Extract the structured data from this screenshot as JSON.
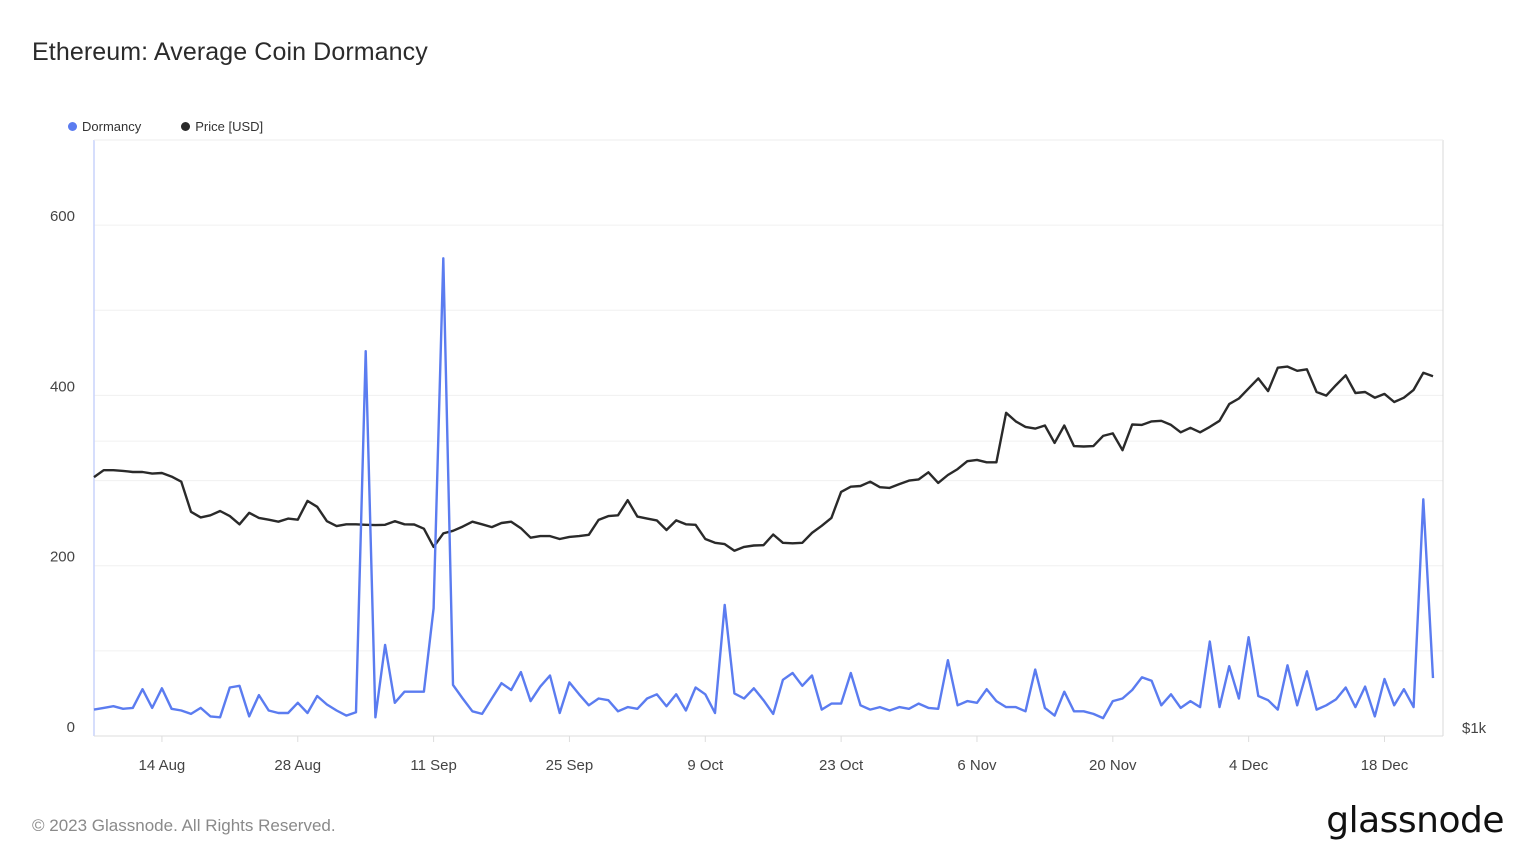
{
  "title": "Ethereum: Average Coin Dormancy",
  "footer": "© 2023 Glassnode. All Rights Reserved.",
  "logo": "glassnode",
  "chart_data": {
    "type": "line",
    "title": "Ethereum: Average Coin Dormancy",
    "start_date": "2023-08-07",
    "frequency": "daily",
    "legend": [
      {
        "name": "Dormancy",
        "color": "#5b7cf0"
      },
      {
        "name": "Price [USD]",
        "color": "#2a2a2a"
      }
    ],
    "legend_placement": "top-left",
    "x_ticks": [
      {
        "label": "14 Aug",
        "index": 7
      },
      {
        "label": "28 Aug",
        "index": 21
      },
      {
        "label": "11 Sep",
        "index": 35
      },
      {
        "label": "25 Sep",
        "index": 49
      },
      {
        "label": "9 Oct",
        "index": 63
      },
      {
        "label": "23 Oct",
        "index": 77
      },
      {
        "label": "6 Nov",
        "index": 91
      },
      {
        "label": "20 Nov",
        "index": 105
      },
      {
        "label": "4 Dec",
        "index": 119
      },
      {
        "label": "18 Dec",
        "index": 133
      }
    ],
    "y_left": {
      "label": "Dormancy",
      "range": [
        0,
        700
      ],
      "ticks": [
        "0",
        "200",
        "400",
        "600"
      ],
      "grid_step": 100
    },
    "y_right": {
      "label": "Price [USD]",
      "scale": "log",
      "range": [
        1000,
        4060
      ],
      "ticks": [
        "$1k"
      ],
      "grid": [
        2000
      ]
    },
    "grid": true,
    "series": [
      {
        "name": "Dormancy",
        "axis": "left",
        "values": [
          31,
          33,
          35,
          32,
          33,
          55,
          33,
          56,
          32,
          30,
          26,
          33,
          23,
          22,
          57,
          59,
          23,
          48,
          30,
          27,
          27,
          39,
          27,
          47,
          37,
          30,
          24,
          28,
          452,
          22,
          107,
          39,
          52,
          52,
          52,
          150,
          561,
          60,
          44,
          29,
          26,
          44,
          62,
          54,
          75,
          41,
          58,
          71,
          27,
          63,
          49,
          36,
          44,
          42,
          29,
          34,
          32,
          44,
          49,
          35,
          49,
          30,
          57,
          49,
          27,
          154,
          50,
          44,
          56,
          42,
          26,
          66,
          74,
          59,
          71,
          31,
          38,
          38,
          74,
          36,
          31,
          34,
          30,
          34,
          32,
          38,
          33,
          32,
          89,
          36,
          41,
          39,
          55,
          41,
          34,
          34,
          29,
          78,
          33,
          24,
          52,
          29,
          29,
          26,
          21,
          41,
          44,
          54,
          69,
          65,
          36,
          49,
          33,
          41,
          34,
          111,
          34,
          82,
          44,
          116,
          47,
          42,
          31,
          83,
          36,
          76,
          31,
          36,
          43,
          57,
          34,
          58,
          23,
          67,
          36,
          55,
          34,
          278,
          68
        ]
      },
      {
        "name": "Price [USD]",
        "axis": "right",
        "values": [
          1838,
          1868,
          1868,
          1865,
          1860,
          1860,
          1853,
          1856,
          1840,
          1818,
          1694,
          1672,
          1680,
          1697,
          1677,
          1645,
          1690,
          1670,
          1663,
          1655,
          1667,
          1663,
          1738,
          1714,
          1657,
          1638,
          1645,
          1645,
          1643,
          1642,
          1643,
          1657,
          1645,
          1644,
          1628,
          1560,
          1610,
          1620,
          1636,
          1655,
          1645,
          1634,
          1650,
          1655,
          1630,
          1594,
          1600,
          1600,
          1589,
          1597,
          1600,
          1605,
          1662,
          1677,
          1680,
          1741,
          1675,
          1667,
          1660,
          1623,
          1660,
          1645,
          1643,
          1589,
          1575,
          1570,
          1546,
          1560,
          1565,
          1566,
          1606,
          1575,
          1573,
          1575,
          1612,
          1639,
          1670,
          1775,
          1797,
          1800,
          1818,
          1795,
          1792,
          1808,
          1823,
          1828,
          1859,
          1813,
          1847,
          1873,
          1908,
          1914,
          1903,
          1903,
          2138,
          2095,
          2068,
          2060,
          2075,
          1992,
          2075,
          1977,
          1975,
          1977,
          2025,
          2037,
          1958,
          2080,
          2078,
          2095,
          2098,
          2078,
          2042,
          2064,
          2042,
          2068,
          2098,
          2182,
          2211,
          2264,
          2318,
          2250,
          2377,
          2383,
          2360,
          2368,
          2245,
          2226,
          2282,
          2335,
          2240,
          2245,
          2215,
          2235,
          2193,
          2215,
          2256,
          2349,
          2330
        ]
      }
    ]
  }
}
